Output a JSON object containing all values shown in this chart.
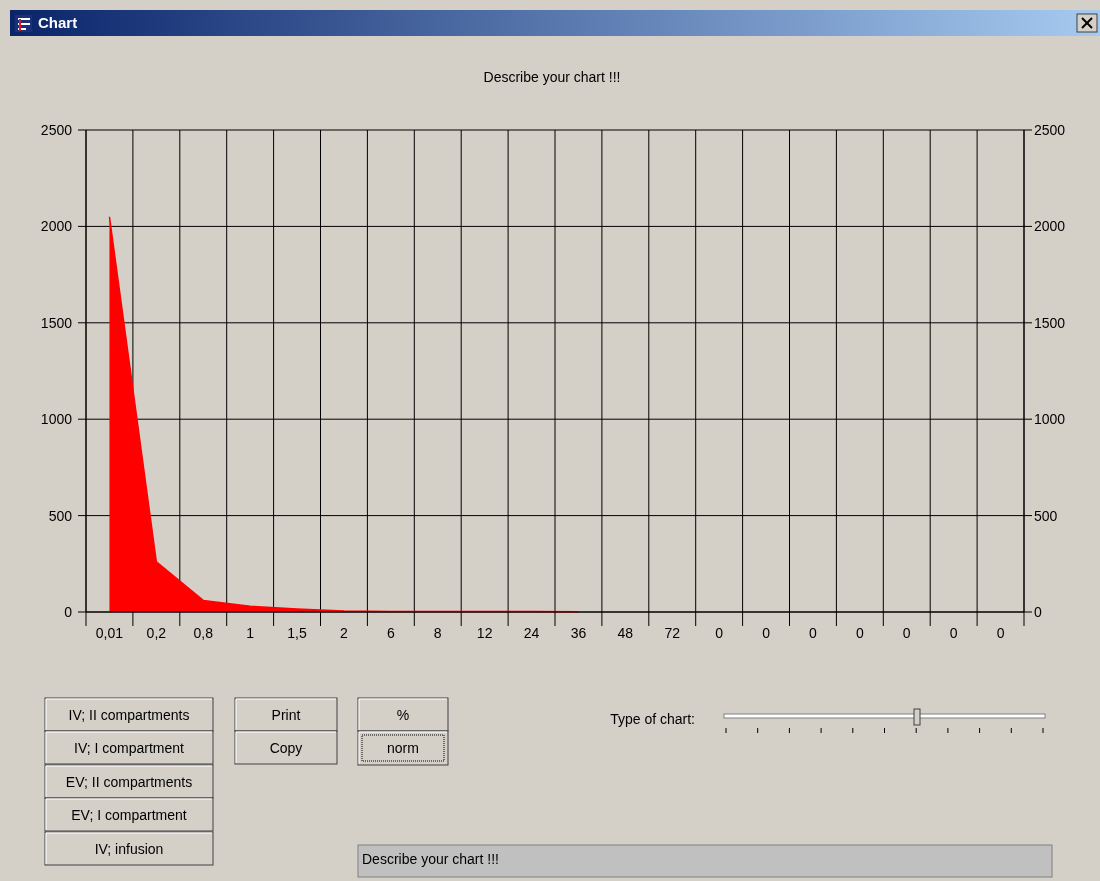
{
  "chart_data": {
    "type": "area",
    "title": "Describe your chart !!!",
    "categories": [
      "0,01",
      "0,2",
      "0,8",
      "1",
      "1,5",
      "2",
      "6",
      "8",
      "12",
      "24",
      "36",
      "48",
      "72",
      "0",
      "0",
      "0",
      "0",
      "0",
      "0",
      "0"
    ],
    "values": [
      2050,
      260,
      60,
      30,
      15,
      5,
      3,
      2,
      2,
      2,
      1,
      null,
      null,
      null,
      null,
      null,
      null,
      null,
      null,
      null
    ],
    "color": "#ff0000",
    "ylim": [
      0,
      2500
    ],
    "yticks": [
      0,
      500,
      1000,
      1500,
      2000,
      2500
    ],
    "y2lim": [
      0,
      2500
    ],
    "y2ticks": [
      0,
      500,
      1000,
      1500,
      2000,
      2500
    ],
    "grid": true,
    "annotations": [
      "Chart",
      "IV; II compartments",
      "IV; I compartment",
      "EV; II compartments",
      "EV; I compartment",
      "IV; infusion",
      "Print",
      "Copy",
      "%",
      "norm",
      "Type of chart:",
      "Describe your chart !!!"
    ]
  }
}
